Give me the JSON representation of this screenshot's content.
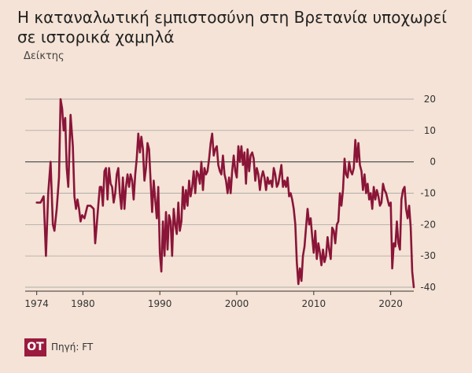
{
  "title": "Η καταναλωτική εμπιστοσύνη στη Βρετανία υποχωρεί σε ιστορικά χαμηλά",
  "logo": "OT",
  "source": "Πηγή: FT",
  "colors": {
    "background": "#f4e3d6",
    "line": "#8a1538",
    "grid": "#9a9a9a",
    "logo": "#9b1b3e"
  },
  "chart_data": {
    "type": "line",
    "title": "Η καταναλωτική εμπιστοσύνη στη Βρετανία υποχωρεί σε ιστορικά χαμηλά",
    "ylabel": "Δείκτης",
    "xlabel": "",
    "xlim": [
      1972.5,
      2023
    ],
    "ylim": [
      -40,
      20
    ],
    "x_ticks": [
      1974,
      1980,
      1990,
      2000,
      2010,
      2020
    ],
    "y_ticks": [
      20,
      10,
      0,
      -10,
      -20,
      -30,
      -40
    ],
    "grid": true,
    "y_axis_side": "right",
    "legend": "none",
    "series": [
      {
        "x": [
          1974.0,
          1974.5,
          1974.9,
          1975.2,
          1975.5,
          1975.8,
          1976.1,
          1976.3,
          1976.6,
          1976.9,
          1977.1,
          1977.3,
          1977.5,
          1977.7,
          1977.9,
          1978.1,
          1978.4,
          1978.7,
          1978.9,
          1979.1,
          1979.3,
          1979.5,
          1979.7,
          1979.9,
          1980.2,
          1980.6,
          1981.0,
          1981.4,
          1981.6,
          1981.8,
          1982.0,
          1982.2,
          1982.4,
          1982.6,
          1982.8,
          1983.0,
          1983.2,
          1983.4,
          1983.6,
          1983.8,
          1984.0,
          1984.2,
          1984.4,
          1984.6,
          1984.8,
          1985.0,
          1985.2,
          1985.4,
          1985.6,
          1985.8,
          1986.0,
          1986.2,
          1986.4,
          1986.6,
          1986.8,
          1987.0,
          1987.2,
          1987.4,
          1987.6,
          1987.8,
          1988.0,
          1988.2,
          1988.4,
          1988.6,
          1988.8,
          1989.0,
          1989.2,
          1989.4,
          1989.6,
          1989.8,
          1990.0,
          1990.2,
          1990.4,
          1990.6,
          1990.8,
          1991.0,
          1991.2,
          1991.4,
          1991.6,
          1991.8,
          1992.0,
          1992.2,
          1992.4,
          1992.6,
          1992.8,
          1993.0,
          1993.2,
          1993.4,
          1993.6,
          1993.8,
          1994.0,
          1994.2,
          1994.4,
          1994.6,
          1994.8,
          1995.0,
          1995.2,
          1995.4,
          1995.6,
          1995.8,
          1996.0,
          1996.2,
          1996.4,
          1996.6,
          1996.8,
          1997.0,
          1997.2,
          1997.4,
          1997.6,
          1997.8,
          1998.0,
          1998.2,
          1998.4,
          1998.6,
          1998.8,
          1999.0,
          1999.2,
          1999.4,
          1999.6,
          1999.8,
          2000.0,
          2000.2,
          2000.4,
          2000.6,
          2000.8,
          2001.0,
          2001.2,
          2001.4,
          2001.6,
          2001.8,
          2002.0,
          2002.2,
          2002.4,
          2002.6,
          2002.8,
          2003.0,
          2003.2,
          2003.4,
          2003.6,
          2003.8,
          2004.0,
          2004.2,
          2004.4,
          2004.6,
          2004.8,
          2005.0,
          2005.2,
          2005.4,
          2005.6,
          2005.8,
          2006.0,
          2006.2,
          2006.4,
          2006.6,
          2006.8,
          2007.0,
          2007.2,
          2007.4,
          2007.6,
          2007.8,
          2008.0,
          2008.2,
          2008.4,
          2008.6,
          2008.8,
          2009.0,
          2009.2,
          2009.4,
          2009.6,
          2009.8,
          2010.0,
          2010.2,
          2010.4,
          2010.6,
          2010.8,
          2011.0,
          2011.2,
          2011.4,
          2011.6,
          2011.8,
          2012.0,
          2012.2,
          2012.4,
          2012.6,
          2012.8,
          2013.0,
          2013.2,
          2013.4,
          2013.6,
          2013.8,
          2014.0,
          2014.2,
          2014.4,
          2014.6,
          2014.8,
          2015.0,
          2015.2,
          2015.4,
          2015.6,
          2015.8,
          2016.0,
          2016.2,
          2016.4,
          2016.6,
          2016.8,
          2017.0,
          2017.2,
          2017.4,
          2017.6,
          2017.8,
          2018.0,
          2018.2,
          2018.4,
          2018.6,
          2018.8,
          2019.0,
          2019.2,
          2019.4,
          2019.6,
          2019.8,
          2020.0,
          2020.2,
          2020.4,
          2020.6,
          2020.8,
          2021.0,
          2021.2,
          2021.4,
          2021.6,
          2021.8,
          2022.0,
          2022.2,
          2022.4,
          2022.6,
          2022.8,
          2023.0
        ],
        "values": [
          -13,
          -13,
          -11,
          -30,
          -10,
          0,
          -20,
          -22,
          -15,
          -5,
          20,
          17,
          10,
          14,
          -2,
          -8,
          15,
          5,
          -11,
          -15,
          -12,
          -15,
          -19,
          -17,
          -18,
          -14,
          -14,
          -15,
          -26,
          -20,
          -14,
          -8,
          -8,
          -14,
          -3,
          -2,
          -12,
          -2,
          -7,
          -8,
          -13,
          -10,
          -4,
          -2,
          -10,
          -15,
          -5,
          -15,
          -8,
          -4,
          -8,
          -4,
          -6,
          -12,
          -4,
          1,
          9,
          3,
          8,
          4,
          -6,
          -2,
          6,
          4,
          -6,
          -16,
          -6,
          -12,
          -18,
          -8,
          -29,
          -35,
          -19,
          -30,
          -16,
          -28,
          -17,
          -19,
          -30,
          -15,
          -20,
          -23,
          -13,
          -22,
          -19,
          -8,
          -15,
          -9,
          -14,
          -6,
          -11,
          -8,
          -3,
          -10,
          -3,
          -4,
          -7,
          0,
          -9,
          -2,
          -4,
          -3,
          1,
          6,
          9,
          2,
          4,
          5,
          -1,
          -3,
          -4,
          2,
          -4,
          -6,
          -10,
          -5,
          -10,
          -3,
          2,
          -3,
          -5,
          5,
          0,
          5,
          -1,
          3,
          -7,
          4,
          -3,
          2,
          3,
          1,
          -6,
          -2,
          -4,
          -9,
          -5,
          -3,
          -5,
          -9,
          -5,
          -7,
          -6,
          -8,
          -2,
          -4,
          -8,
          -7,
          -4,
          -1,
          -8,
          -6,
          -8,
          -5,
          -11,
          -10,
          -12,
          -15,
          -20,
          -32,
          -39,
          -34,
          -38,
          -30,
          -27,
          -21,
          -15,
          -20,
          -18,
          -24,
          -29,
          -22,
          -31,
          -26,
          -29,
          -33,
          -28,
          -32,
          -30,
          -24,
          -28,
          -31,
          -21,
          -22,
          -26,
          -20,
          -19,
          -10,
          -14,
          -9,
          1,
          -4,
          -5,
          0,
          -3,
          -4,
          -2,
          7,
          0,
          6,
          -1,
          -3,
          -9,
          -4,
          -10,
          -7,
          -12,
          -10,
          -15,
          -8,
          -12,
          -9,
          -11,
          -14,
          -13,
          -7,
          -9,
          -10,
          -12,
          -14,
          -13,
          -34,
          -26,
          -27,
          -19,
          -26,
          -28,
          -12,
          -9,
          -8,
          -15,
          -18,
          -14,
          -21,
          -35,
          -40
        ]
      }
    ]
  }
}
